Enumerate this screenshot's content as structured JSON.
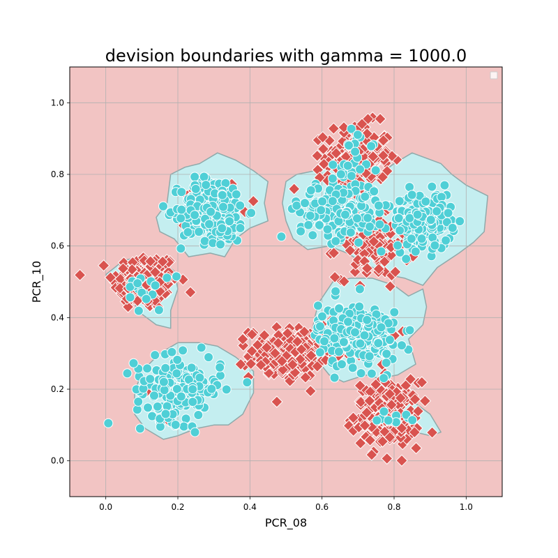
{
  "chart_data": {
    "type": "scatter",
    "title": "devision boundaries with gamma = 1000.0",
    "xlabel": "PCR_08",
    "ylabel": "PCR_10",
    "xlim": [
      -0.1,
      1.1
    ],
    "ylim": [
      -0.1,
      1.1
    ],
    "x_ticks": [
      "0.0",
      "0.2",
      "0.4",
      "0.6",
      "0.8",
      "1.0"
    ],
    "y_ticks": [
      "0.0",
      "0.2",
      "0.4",
      "0.6",
      "0.8",
      "1.0"
    ],
    "x_tick_values": [
      0.0,
      0.2,
      0.4,
      0.6,
      0.8,
      1.0
    ],
    "y_tick_values": [
      0.0,
      0.2,
      0.4,
      0.6,
      0.8,
      1.0
    ],
    "grid": true,
    "legend": {
      "placement": "top-right",
      "entries": []
    },
    "colors": {
      "background_region": "#f2c4c3",
      "positive_region": "#c4eef0",
      "region_edge": "#8fa9aa",
      "class_circle": "#4fcfd6",
      "class_diamond": "#d9534f",
      "marker_edge": "#ffffff"
    },
    "decision_regions": [
      {
        "label": "upper-left blob",
        "polygon": [
          [
            0.17,
            0.72
          ],
          [
            0.18,
            0.8
          ],
          [
            0.22,
            0.82
          ],
          [
            0.26,
            0.83
          ],
          [
            0.31,
            0.86
          ],
          [
            0.36,
            0.84
          ],
          [
            0.41,
            0.81
          ],
          [
            0.45,
            0.78
          ],
          [
            0.44,
            0.72
          ],
          [
            0.45,
            0.67
          ],
          [
            0.4,
            0.65
          ],
          [
            0.36,
            0.62
          ],
          [
            0.33,
            0.57
          ],
          [
            0.29,
            0.58
          ],
          [
            0.23,
            0.57
          ],
          [
            0.19,
            0.62
          ],
          [
            0.15,
            0.64
          ],
          [
            0.14,
            0.68
          ]
        ]
      },
      {
        "label": "left blob",
        "polygon": [
          [
            0.0,
            0.52
          ],
          [
            0.03,
            0.5
          ],
          [
            0.07,
            0.45
          ],
          [
            0.1,
            0.41
          ],
          [
            0.14,
            0.38
          ],
          [
            0.18,
            0.37
          ],
          [
            0.18,
            0.42
          ],
          [
            0.2,
            0.48
          ],
          [
            0.19,
            0.53
          ],
          [
            0.15,
            0.56
          ],
          [
            0.1,
            0.57
          ],
          [
            0.05,
            0.56
          ]
        ]
      },
      {
        "label": "upper-right blob",
        "polygon": [
          [
            0.5,
            0.78
          ],
          [
            0.53,
            0.8
          ],
          [
            0.58,
            0.81
          ],
          [
            0.63,
            0.83
          ],
          [
            0.68,
            0.81
          ],
          [
            0.72,
            0.8
          ],
          [
            0.76,
            0.8
          ],
          [
            0.8,
            0.83
          ],
          [
            0.85,
            0.86
          ],
          [
            0.93,
            0.83
          ],
          [
            0.96,
            0.8
          ],
          [
            1.0,
            0.77
          ],
          [
            1.06,
            0.74
          ],
          [
            1.05,
            0.64
          ],
          [
            1.02,
            0.61
          ],
          [
            0.98,
            0.58
          ],
          [
            0.92,
            0.54
          ],
          [
            0.88,
            0.49
          ],
          [
            0.83,
            0.51
          ],
          [
            0.78,
            0.52
          ],
          [
            0.72,
            0.55
          ],
          [
            0.67,
            0.58
          ],
          [
            0.62,
            0.6
          ],
          [
            0.56,
            0.59
          ],
          [
            0.52,
            0.62
          ],
          [
            0.5,
            0.67
          ],
          [
            0.49,
            0.72
          ]
        ]
      },
      {
        "label": "center-right blob",
        "polygon": [
          [
            0.59,
            0.44
          ],
          [
            0.63,
            0.5
          ],
          [
            0.68,
            0.51
          ],
          [
            0.74,
            0.51
          ],
          [
            0.8,
            0.49
          ],
          [
            0.84,
            0.46
          ],
          [
            0.88,
            0.48
          ],
          [
            0.89,
            0.43
          ],
          [
            0.88,
            0.38
          ],
          [
            0.84,
            0.34
          ],
          [
            0.86,
            0.27
          ],
          [
            0.81,
            0.24
          ],
          [
            0.76,
            0.23
          ],
          [
            0.72,
            0.24
          ],
          [
            0.66,
            0.22
          ],
          [
            0.62,
            0.24
          ],
          [
            0.58,
            0.29
          ],
          [
            0.57,
            0.35
          ],
          [
            0.58,
            0.4
          ]
        ]
      },
      {
        "label": "lower-left blob",
        "polygon": [
          [
            0.08,
            0.19
          ],
          [
            0.1,
            0.25
          ],
          [
            0.15,
            0.3
          ],
          [
            0.2,
            0.33
          ],
          [
            0.26,
            0.33
          ],
          [
            0.31,
            0.32
          ],
          [
            0.36,
            0.29
          ],
          [
            0.41,
            0.25
          ],
          [
            0.41,
            0.19
          ],
          [
            0.38,
            0.13
          ],
          [
            0.34,
            0.1
          ],
          [
            0.3,
            0.1
          ],
          [
            0.25,
            0.09
          ],
          [
            0.2,
            0.07
          ],
          [
            0.16,
            0.06
          ],
          [
            0.11,
            0.09
          ],
          [
            0.08,
            0.13
          ]
        ]
      },
      {
        "label": "lower-right blob",
        "polygon": [
          [
            0.74,
            0.1
          ],
          [
            0.78,
            0.12
          ],
          [
            0.82,
            0.11
          ],
          [
            0.86,
            0.08
          ],
          [
            0.9,
            0.07
          ],
          [
            0.93,
            0.08
          ],
          [
            0.9,
            0.13
          ],
          [
            0.86,
            0.16
          ],
          [
            0.81,
            0.17
          ],
          [
            0.77,
            0.16
          ],
          [
            0.74,
            0.14
          ]
        ]
      }
    ],
    "series": [
      {
        "marker": "circle",
        "color": "#4fcfd6",
        "clusters": [
          {
            "cx": 0.3,
            "cy": 0.7,
            "sx": 0.045,
            "sy": 0.045,
            "n": 260
          },
          {
            "cx": 0.2,
            "cy": 0.2,
            "sx": 0.06,
            "sy": 0.045,
            "n": 170
          },
          {
            "cx": 0.65,
            "cy": 0.7,
            "sx": 0.055,
            "sy": 0.04,
            "n": 200
          },
          {
            "cx": 0.88,
            "cy": 0.67,
            "sx": 0.04,
            "sy": 0.04,
            "n": 170
          },
          {
            "cx": 0.7,
            "cy": 0.35,
            "sx": 0.055,
            "sy": 0.045,
            "n": 210
          },
          {
            "cx": 0.11,
            "cy": 0.48,
            "sx": 0.03,
            "sy": 0.03,
            "n": 18
          },
          {
            "cx": 0.7,
            "cy": 0.86,
            "sx": 0.03,
            "sy": 0.04,
            "n": 20
          },
          {
            "cx": 0.8,
            "cy": 0.12,
            "sx": 0.03,
            "sy": 0.02,
            "n": 10
          }
        ]
      },
      {
        "marker": "diamond",
        "color": "#d9534f",
        "clusters": [
          {
            "cx": 0.11,
            "cy": 0.5,
            "sx": 0.045,
            "sy": 0.04,
            "n": 170
          },
          {
            "cx": 0.7,
            "cy": 0.85,
            "sx": 0.045,
            "sy": 0.045,
            "n": 170
          },
          {
            "cx": 0.78,
            "cy": 0.13,
            "sx": 0.045,
            "sy": 0.045,
            "n": 190
          },
          {
            "cx": 0.5,
            "cy": 0.3,
            "sx": 0.05,
            "sy": 0.035,
            "n": 190
          },
          {
            "cx": 0.74,
            "cy": 0.6,
            "sx": 0.05,
            "sy": 0.045,
            "n": 100
          },
          {
            "cx": 0.65,
            "cy": 0.72,
            "sx": 0.05,
            "sy": 0.04,
            "n": 35
          },
          {
            "cx": 0.31,
            "cy": 0.7,
            "sx": 0.045,
            "sy": 0.04,
            "n": 18
          },
          {
            "cx": 0.69,
            "cy": 0.35,
            "sx": 0.06,
            "sy": 0.04,
            "n": 35
          },
          {
            "cx": 0.21,
            "cy": 0.2,
            "sx": 0.05,
            "sy": 0.04,
            "n": 12
          }
        ]
      }
    ]
  }
}
